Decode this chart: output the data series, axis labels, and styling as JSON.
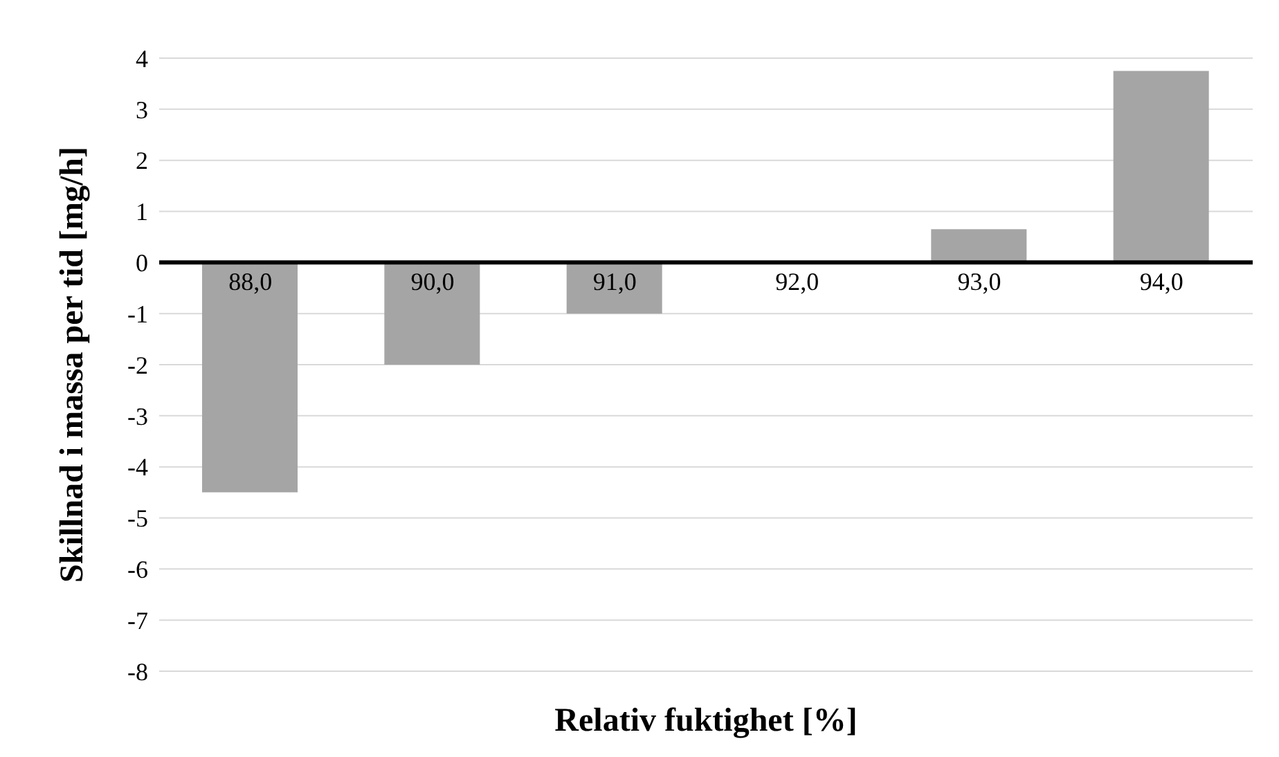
{
  "chart_data": {
    "type": "bar",
    "xlabel": "Relativ fuktighet [%]",
    "ylabel": "Skillnad i massa per tid [mg/h]",
    "categories": [
      "88,0",
      "90,0",
      "91,0",
      "92,0",
      "93,0",
      "94,0"
    ],
    "values": [
      -4.5,
      -2.0,
      -1.0,
      0,
      0.65,
      3.75
    ],
    "color": "#a5a5a5",
    "ylim": [
      -8,
      4
    ],
    "yticks": [
      -8,
      -7,
      -6,
      -5,
      -4,
      -3,
      -2,
      -1,
      0,
      1,
      2,
      3,
      4
    ],
    "grid": "y"
  }
}
